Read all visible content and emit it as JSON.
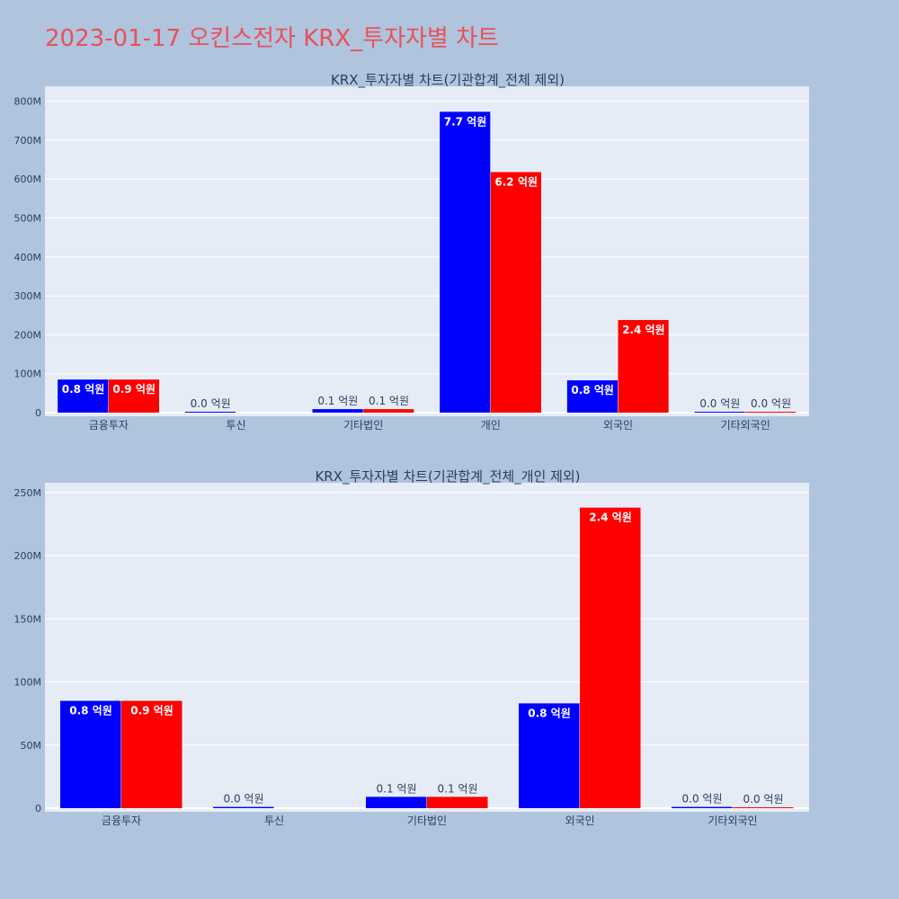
{
  "page": {
    "title": "2023-01-17 오킨스전자 KRX_투자자별 차트"
  },
  "colors": {
    "background": "#b0c4de",
    "plot_background": "#e5ecf6",
    "title": "#e8515a",
    "series_1": "#0000ff",
    "series_2": "#ff0000"
  },
  "chart_data": [
    {
      "type": "bar",
      "title": "KRX_투자자별 차트(기관합계_전체 제외)",
      "categories": [
        "금융투자",
        "투신",
        "기타법인",
        "개인",
        "외국인",
        "기타외국인"
      ],
      "series": [
        {
          "color": "#0000ff",
          "values": [
            85000000,
            1000000,
            9000000,
            773000000,
            83000000,
            1000000
          ],
          "labels": [
            "0.8 억원",
            "0.0 억원",
            "0.1 억원",
            "7.7 억원",
            "0.8 억원",
            "0.0 억원"
          ]
        },
        {
          "color": "#ff0000",
          "values": [
            85000000,
            0,
            9000000,
            618000000,
            238000000,
            500000
          ],
          "labels": [
            "0.9 억원",
            "",
            "0.1 억원",
            "6.2 억원",
            "2.4 억원",
            "0.0 억원"
          ]
        }
      ],
      "ylim": [
        0,
        820000000
      ],
      "yticks": [
        0,
        100000000,
        200000000,
        300000000,
        400000000,
        500000000,
        600000000,
        700000000,
        800000000
      ],
      "ytick_labels": [
        "0",
        "100M",
        "200M",
        "300M",
        "400M",
        "500M",
        "600M",
        "700M",
        "800M"
      ],
      "grid": true,
      "legend": "none"
    },
    {
      "type": "bar",
      "title": "KRX_투자자별 차트(기관합계_전체_개인 제외)",
      "categories": [
        "금융투자",
        "투신",
        "기타법인",
        "외국인",
        "기타외국인"
      ],
      "series": [
        {
          "color": "#0000ff",
          "values": [
            85000000,
            1000000,
            9000000,
            83000000,
            1000000
          ],
          "labels": [
            "0.8 억원",
            "0.0 억원",
            "0.1 억원",
            "0.8 억원",
            "0.0 억원"
          ]
        },
        {
          "color": "#ff0000",
          "values": [
            85000000,
            0,
            9000000,
            238000000,
            500000
          ],
          "labels": [
            "0.9 억원",
            "",
            "0.1 억원",
            "2.4 억원",
            "0.0 억원"
          ]
        }
      ],
      "ylim": [
        0,
        252000000
      ],
      "yticks": [
        0,
        50000000,
        100000000,
        150000000,
        200000000,
        250000000
      ],
      "ytick_labels": [
        "0",
        "50M",
        "100M",
        "150M",
        "200M",
        "250M"
      ],
      "grid": true,
      "legend": "none"
    }
  ]
}
